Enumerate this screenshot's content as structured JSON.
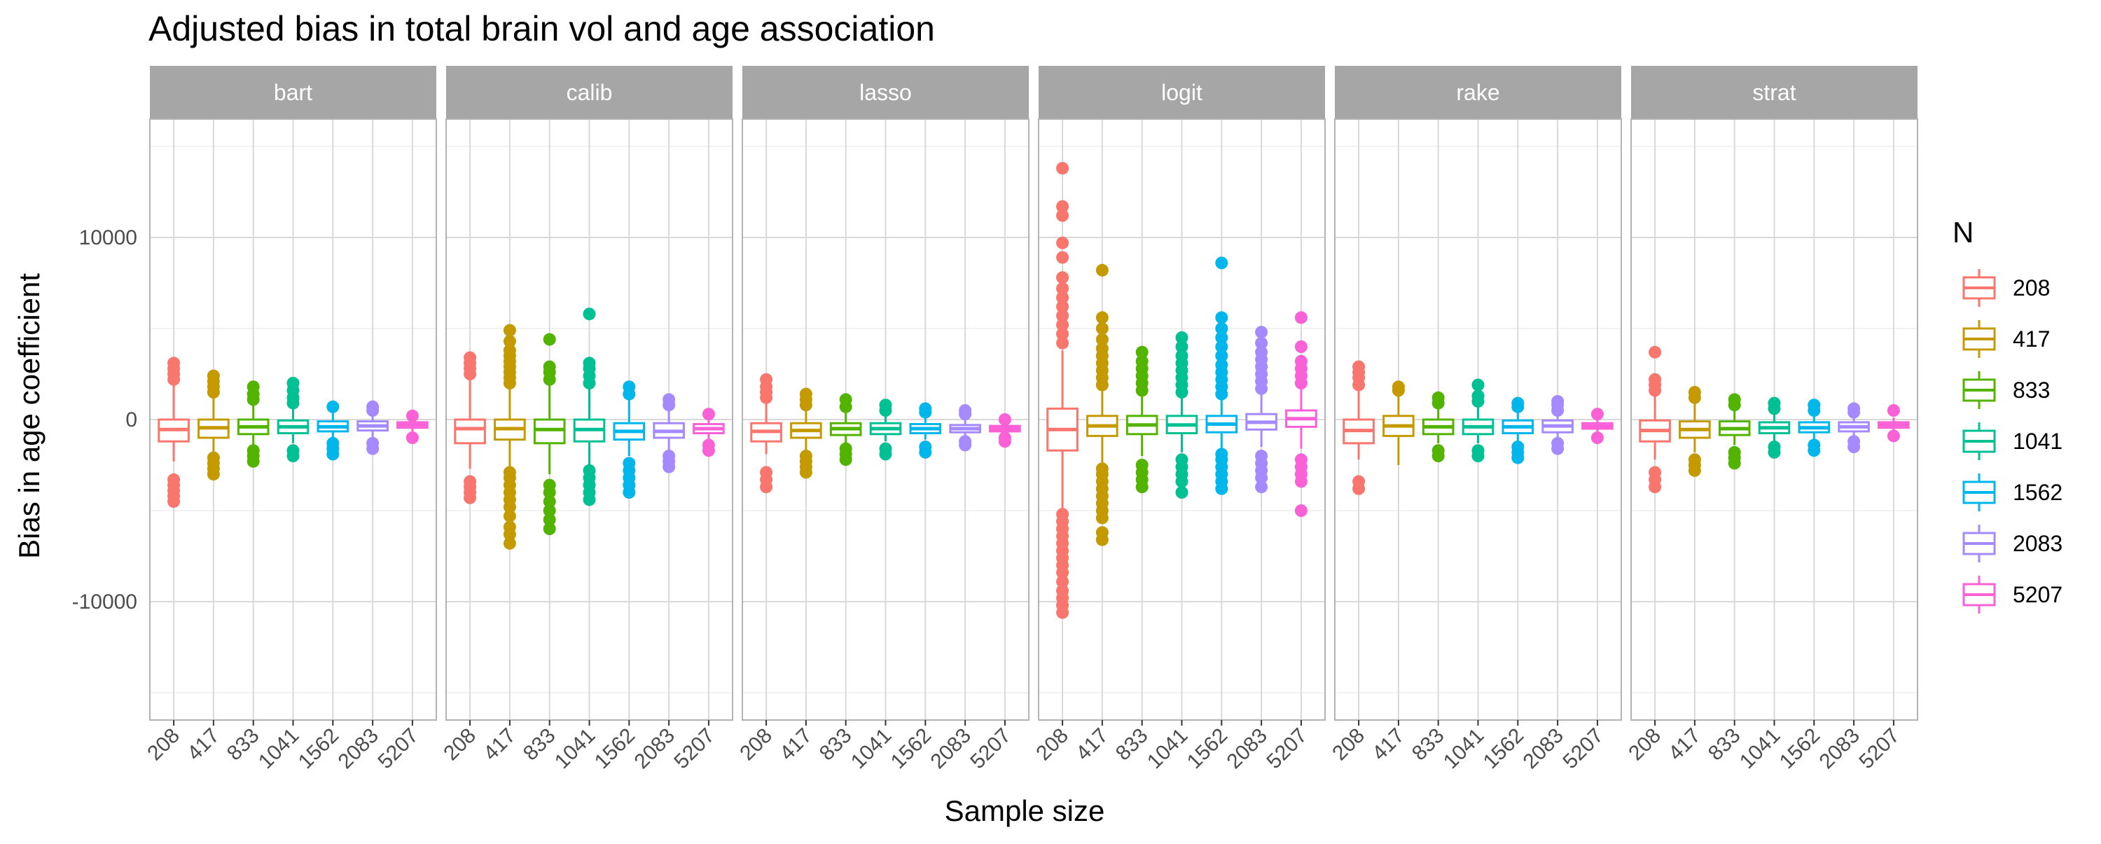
{
  "chart_data": {
    "type": "boxplot",
    "title": "Adjusted bias in total brain vol and age association",
    "xlabel": "Sample size",
    "ylabel": "Bias in age coefficient",
    "ylim": [
      -16500,
      16500
    ],
    "yticks": [
      -10000,
      0,
      10000
    ],
    "grid": true,
    "facets": [
      "bart",
      "calib",
      "lasso",
      "logit",
      "rake",
      "strat"
    ],
    "categories": [
      "208",
      "417",
      "833",
      "1041",
      "1562",
      "2083",
      "5207"
    ],
    "legend": {
      "title": "N",
      "position": "right",
      "entries": [
        "208",
        "417",
        "833",
        "1041",
        "1562",
        "2083",
        "5207"
      ]
    },
    "colors": [
      "#F8766D",
      "#C49A00",
      "#53B400",
      "#00C094",
      "#00B6EB",
      "#A58AFF",
      "#FB61D7"
    ],
    "panels": [
      {
        "facet": "bart",
        "boxes": [
          {
            "n": "208",
            "lw": -2300,
            "q1": -1200,
            "med": -550,
            "q3": 0,
            "uw": 2000,
            "outliers": [
              -4500,
              -4200,
              -3900,
              -3600,
              -3300,
              2200,
              2500,
              2800,
              3100
            ]
          },
          {
            "n": "417",
            "lw": -1900,
            "q1": -1000,
            "med": -450,
            "q3": 0,
            "uw": 1400,
            "outliers": [
              -3000,
              -2700,
              -2400,
              -2100,
              1500,
              1800,
              2100,
              2400
            ]
          },
          {
            "n": "833",
            "lw": -1500,
            "q1": -800,
            "med": -400,
            "q3": 0,
            "uw": 1000,
            "outliers": [
              -2300,
              -2000,
              -1700,
              1100,
              1400,
              1800
            ]
          },
          {
            "n": "1041",
            "lw": -1300,
            "q1": -750,
            "med": -400,
            "q3": -50,
            "uw": 800,
            "outliers": [
              -2000,
              -1700,
              900,
              1200,
              1600,
              2000
            ]
          },
          {
            "n": "1562",
            "lw": -1100,
            "q1": -650,
            "med": -400,
            "q3": -100,
            "uw": 500,
            "outliers": [
              -1900,
              -1600,
              -1300,
              700
            ]
          },
          {
            "n": "2083",
            "lw": -1000,
            "q1": -600,
            "med": -350,
            "q3": -100,
            "uw": 400,
            "outliers": [
              -1600,
              -1300,
              500,
              700
            ]
          },
          {
            "n": "5207",
            "lw": -700,
            "q1": -450,
            "med": -300,
            "q3": -150,
            "uw": 100,
            "outliers": [
              -1000,
              200
            ]
          }
        ]
      },
      {
        "facet": "calib",
        "boxes": [
          {
            "n": "208",
            "lw": -2700,
            "q1": -1300,
            "med": -500,
            "q3": 0,
            "uw": 2300,
            "outliers": [
              -4300,
              -4000,
              -3700,
              -3400,
              2500,
              2800,
              3100,
              3400
            ]
          },
          {
            "n": "417",
            "lw": -2700,
            "q1": -1100,
            "med": -500,
            "q3": 0,
            "uw": 1900,
            "outliers": [
              -6800,
              -6300,
              -5900,
              -5300,
              -4800,
              -4400,
              -4000,
              -3600,
              -3200,
              -2900,
              2000,
              2300,
              2600,
              2900,
              3200,
              3500,
              3800,
              4300,
              4900
            ]
          },
          {
            "n": "833",
            "lw": -3000,
            "q1": -1300,
            "med": -550,
            "q3": 0,
            "uw": 2000,
            "outliers": [
              -6000,
              -5500,
              -5000,
              -4500,
              -4000,
              -3600,
              2200,
              2600,
              2900,
              4400
            ]
          },
          {
            "n": "1041",
            "lw": -2500,
            "q1": -1200,
            "med": -550,
            "q3": 0,
            "uw": 1800,
            "outliers": [
              -4400,
              -4000,
              -3600,
              -3200,
              -2800,
              2000,
              2400,
              2800,
              3100,
              5800
            ]
          },
          {
            "n": "1562",
            "lw": -2000,
            "q1": -1100,
            "med": -650,
            "q3": -200,
            "uw": 1200,
            "outliers": [
              -4000,
              -3600,
              -3200,
              -2800,
              -2400,
              1400,
              1800
            ]
          },
          {
            "n": "2083",
            "lw": -1800,
            "q1": -1000,
            "med": -650,
            "q3": -200,
            "uw": 700,
            "outliers": [
              -2600,
              -2300,
              -2000,
              800,
              1100
            ]
          },
          {
            "n": "5207",
            "lw": -1200,
            "q1": -750,
            "med": -500,
            "q3": -250,
            "uw": 300,
            "outliers": [
              -1700,
              -1400,
              300
            ]
          }
        ]
      },
      {
        "facet": "lasso",
        "boxes": [
          {
            "n": "208",
            "lw": -1900,
            "q1": -1200,
            "med": -650,
            "q3": -200,
            "uw": 1000,
            "outliers": [
              -3700,
              -3300,
              -2900,
              1200,
              1500,
              1800,
              2200
            ]
          },
          {
            "n": "417",
            "lw": -1700,
            "q1": -1000,
            "med": -600,
            "q3": -200,
            "uw": 700,
            "outliers": [
              -2900,
              -2600,
              -2300,
              -2000,
              800,
              1100,
              1400
            ]
          },
          {
            "n": "833",
            "lw": -1300,
            "q1": -850,
            "med": -500,
            "q3": -200,
            "uw": 500,
            "outliers": [
              -2200,
              -1900,
              -1600,
              700,
              1100
            ]
          },
          {
            "n": "1041",
            "lw": -1200,
            "q1": -800,
            "med": -500,
            "q3": -200,
            "uw": 400,
            "outliers": [
              -1900,
              -1600,
              500,
              800
            ]
          },
          {
            "n": "1562",
            "lw": -1100,
            "q1": -750,
            "med": -500,
            "q3": -250,
            "uw": 300,
            "outliers": [
              -1800,
              -1500,
              400,
              600
            ]
          },
          {
            "n": "2083",
            "lw": -1000,
            "q1": -700,
            "med": -500,
            "q3": -300,
            "uw": 200,
            "outliers": [
              -1400,
              -1200,
              300,
              500
            ]
          },
          {
            "n": "5207",
            "lw": -900,
            "q1": -650,
            "med": -500,
            "q3": -350,
            "uw": 0,
            "outliers": [
              -1200,
              -1000,
              0
            ]
          }
        ]
      },
      {
        "facet": "logit",
        "boxes": [
          {
            "n": "208",
            "lw": -5000,
            "q1": -1700,
            "med": -550,
            "q3": 600,
            "uw": 3800,
            "outliers": [
              -10600,
              -10200,
              -9800,
              -9400,
              -8900,
              -8400,
              -8000,
              -7600,
              -7200,
              -6800,
              -6400,
              -6000,
              -5600,
              -5200,
              4200,
              4700,
              5200,
              5700,
              6200,
              6700,
              7200,
              7800,
              8900,
              9700,
              11200,
              11700,
              13800
            ]
          },
          {
            "n": "417",
            "lw": -2500,
            "q1": -900,
            "med": -350,
            "q3": 200,
            "uw": 1700,
            "outliers": [
              -6600,
              -6200,
              -5400,
              -5000,
              -4600,
              -4200,
              -3800,
              -3400,
              -3000,
              -2700,
              1900,
              2300,
              2700,
              3100,
              3500,
              3900,
              4400,
              5000,
              5600,
              8200
            ]
          },
          {
            "n": "833",
            "lw": -2000,
            "q1": -800,
            "med": -300,
            "q3": 200,
            "uw": 1400,
            "outliers": [
              -3700,
              -3300,
              -2900,
              -2500,
              1600,
              2000,
              2400,
              2800,
              3200,
              3700
            ]
          },
          {
            "n": "1041",
            "lw": -1800,
            "q1": -750,
            "med": -300,
            "q3": 200,
            "uw": 1300,
            "outliers": [
              -4000,
              -3400,
              -3000,
              -2600,
              -2200,
              1500,
              1900,
              2300,
              2700,
              3100,
              3500,
              4000,
              4500
            ]
          },
          {
            "n": "1562",
            "lw": -1700,
            "q1": -700,
            "med": -250,
            "q3": 200,
            "uw": 1200,
            "outliers": [
              -3800,
              -3400,
              -3000,
              -2600,
              -2200,
              -1900,
              1400,
              1800,
              2200,
              2600,
              3000,
              3500,
              4000,
              4500,
              5000,
              5600,
              8600
            ]
          },
          {
            "n": "2083",
            "lw": -1500,
            "q1": -550,
            "med": -150,
            "q3": 300,
            "uw": 1500,
            "outliers": [
              -3700,
              -3200,
              -2800,
              -2400,
              -2000,
              1700,
              2100,
              2500,
              2900,
              3300,
              3700,
              4200,
              4800
            ]
          },
          {
            "n": "5207",
            "lw": -1600,
            "q1": -400,
            "med": 50,
            "q3": 500,
            "uw": 1800,
            "outliers": [
              -5000,
              -3400,
              -3000,
              -2600,
              -2200,
              2000,
              2400,
              2800,
              3200,
              4000,
              5600
            ]
          }
        ]
      },
      {
        "facet": "rake",
        "boxes": [
          {
            "n": "208",
            "lw": -2200,
            "q1": -1300,
            "med": -600,
            "q3": 0,
            "uw": 1600,
            "outliers": [
              -3800,
              -3400,
              1900,
              2300,
              2600,
              2900
            ]
          },
          {
            "n": "417",
            "lw": -2500,
            "q1": -900,
            "med": -350,
            "q3": 200,
            "uw": 1400,
            "outliers": [
              1600,
              1800
            ]
          },
          {
            "n": "833",
            "lw": -1300,
            "q1": -800,
            "med": -400,
            "q3": 0,
            "uw": 700,
            "outliers": [
              -2000,
              -1700,
              900,
              1200
            ]
          },
          {
            "n": "1041",
            "lw": -1300,
            "q1": -800,
            "med": -400,
            "q3": 0,
            "uw": 700,
            "outliers": [
              -2000,
              -1700,
              1000,
              1300,
              1900
            ]
          },
          {
            "n": "1562",
            "lw": -1200,
            "q1": -750,
            "med": -400,
            "q3": -50,
            "uw": 500,
            "outliers": [
              -2100,
              -1800,
              -1500,
              700,
              900
            ]
          },
          {
            "n": "2083",
            "lw": -1100,
            "q1": -700,
            "med": -350,
            "q3": -50,
            "uw": 400,
            "outliers": [
              -1600,
              -1300,
              500,
              800,
              1000
            ]
          },
          {
            "n": "5207",
            "lw": -700,
            "q1": -500,
            "med": -350,
            "q3": -200,
            "uw": 100,
            "outliers": [
              -1000,
              300
            ]
          }
        ]
      },
      {
        "facet": "strat",
        "boxes": [
          {
            "n": "208",
            "lw": -2200,
            "q1": -1200,
            "med": -600,
            "q3": -50,
            "uw": 1300,
            "outliers": [
              -3700,
              -3300,
              -2900,
              1600,
              1900,
              2200,
              3700
            ]
          },
          {
            "n": "417",
            "lw": -1800,
            "q1": -1000,
            "med": -550,
            "q3": -100,
            "uw": 1000,
            "outliers": [
              -2800,
              -2500,
              -2200,
              1200,
              1500
            ]
          },
          {
            "n": "833",
            "lw": -1400,
            "q1": -850,
            "med": -500,
            "q3": -100,
            "uw": 700,
            "outliers": [
              -2400,
              -2100,
              -1800,
              800,
              1100
            ]
          },
          {
            "n": "1041",
            "lw": -1200,
            "q1": -750,
            "med": -450,
            "q3": -150,
            "uw": 500,
            "outliers": [
              -1800,
              -1500,
              600,
              900
            ]
          },
          {
            "n": "1562",
            "lw": -1100,
            "q1": -700,
            "med": -450,
            "q3": -150,
            "uw": 400,
            "outliers": [
              -1700,
              -1400,
              500,
              800
            ]
          },
          {
            "n": "2083",
            "lw": -1000,
            "q1": -650,
            "med": -400,
            "q3": -150,
            "uw": 300,
            "outliers": [
              -1500,
              -1200,
              400,
              600
            ]
          },
          {
            "n": "5207",
            "lw": -600,
            "q1": -450,
            "med": -300,
            "q3": -150,
            "uw": 100,
            "outliers": [
              -900,
              500
            ]
          }
        ]
      }
    ]
  }
}
